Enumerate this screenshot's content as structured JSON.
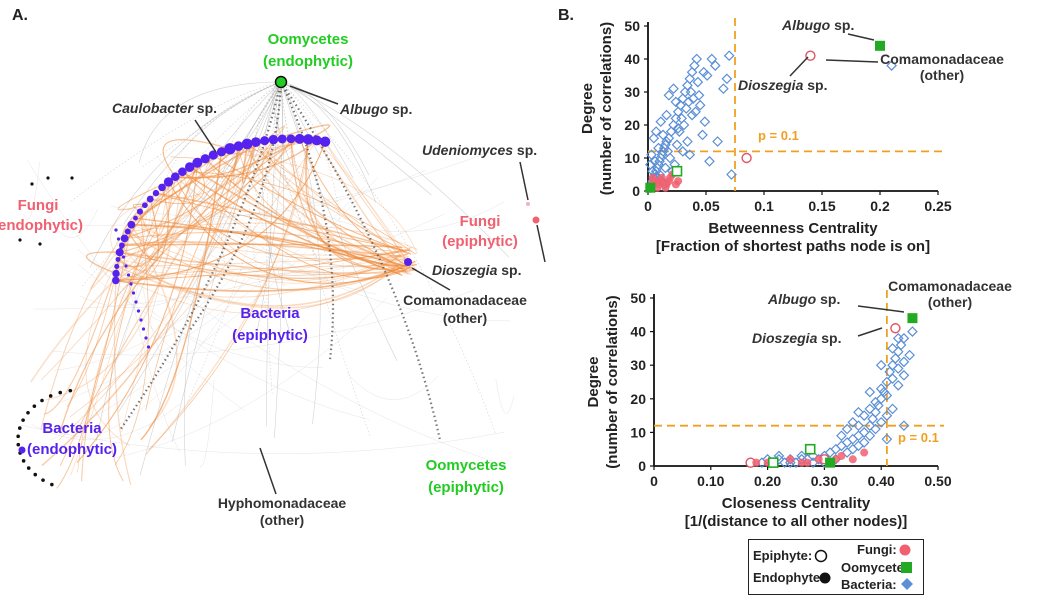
{
  "panel_a": {
    "panel_label": "A.",
    "groups": {
      "oomycetes_endo": [
        "Oomycetes",
        "(endophytic)"
      ],
      "fungi_endo": [
        "Fungi",
        "(endophytic)"
      ],
      "fungi_epi": [
        "Fungi",
        "(epiphytic)"
      ],
      "bacteria_epi": [
        "Bacteria",
        "(epiphytic)"
      ],
      "bacteria_endo": [
        "Bacteria",
        "(endophytic)"
      ],
      "oomycetes_epi": [
        "Oomycetes",
        "(epiphytic)"
      ]
    },
    "callouts": {
      "caulobacter": {
        "italic": "Caulobacter",
        "rest": " sp."
      },
      "albugo": {
        "italic": "Albugo",
        "rest": " sp."
      },
      "udeniomyces": {
        "italic": "Udeniomyces",
        "rest": " sp."
      },
      "dioszegia": {
        "italic": "Dioszegia",
        "rest": " sp."
      },
      "comamonadaceae": [
        "Comamonadaceae",
        "(other)"
      ],
      "hyphomonadaceae": [
        "Hyphomonadaceae",
        "(other)"
      ]
    },
    "colors": {
      "oomycetes": "#22cc22",
      "fungi": "#f06070",
      "bacteria": "#5522ee",
      "edges_bacteria": "#f08a3a",
      "edges_other": "#999999"
    }
  },
  "panel_b_label": "B.",
  "chart_data": [
    {
      "type": "scatter",
      "xlabel": "Betweenness Centrality",
      "xlabel2": "[Fraction of shortest paths node is on]",
      "ylabel": "Degree",
      "ylabel2": "(number of correlations)",
      "xlim": [
        0,
        0.25
      ],
      "ylim": [
        0,
        50
      ],
      "xticks": [
        "0",
        "0.05",
        "0.1",
        "0.15",
        "0.2",
        "0.25"
      ],
      "yticks": [
        "0",
        "10",
        "20",
        "30",
        "40",
        "50"
      ],
      "threshold_x": 0.075,
      "threshold_y": 12,
      "threshold_label": "p = 0.1",
      "annotations": {
        "albugo": {
          "italic": "Albugo",
          "rest": " sp."
        },
        "dioszegia": {
          "italic": "Dioszegia",
          "rest": " sp."
        },
        "comamonadaceae": [
          "Comamonadaceae",
          "(other)"
        ]
      },
      "series": [
        {
          "name": "Bacteria",
          "marker": "diamond",
          "points": [
            [
              0.002,
              1
            ],
            [
              0.003,
              2
            ],
            [
              0.004,
              3
            ],
            [
              0.005,
              4
            ],
            [
              0.006,
              5
            ],
            [
              0.007,
              6
            ],
            [
              0.008,
              7
            ],
            [
              0.009,
              8
            ],
            [
              0.01,
              9
            ],
            [
              0.011,
              10
            ],
            [
              0.012,
              11
            ],
            [
              0.013,
              12
            ],
            [
              0.014,
              13
            ],
            [
              0.015,
              14
            ],
            [
              0.016,
              15
            ],
            [
              0.018,
              16
            ],
            [
              0.02,
              18
            ],
            [
              0.022,
              20
            ],
            [
              0.024,
              22
            ],
            [
              0.026,
              24
            ],
            [
              0.028,
              26
            ],
            [
              0.03,
              28
            ],
            [
              0.032,
              30
            ],
            [
              0.034,
              32
            ],
            [
              0.036,
              34
            ],
            [
              0.038,
              36
            ],
            [
              0.04,
              38
            ],
            [
              0.042,
              40
            ],
            [
              0.055,
              40
            ],
            [
              0.07,
              41
            ],
            [
              0.002,
              8
            ],
            [
              0.003,
              11
            ],
            [
              0.004,
              6
            ],
            [
              0.006,
              9
            ],
            [
              0.008,
              4
            ],
            [
              0.01,
              5
            ],
            [
              0.012,
              3
            ],
            [
              0.014,
              2
            ],
            [
              0.015,
              7
            ],
            [
              0.017,
              12
            ],
            [
              0.019,
              10
            ],
            [
              0.021,
              6
            ],
            [
              0.023,
              8
            ],
            [
              0.025,
              14
            ],
            [
              0.027,
              18
            ],
            [
              0.029,
              22
            ],
            [
              0.031,
              20
            ],
            [
              0.033,
              25
            ],
            [
              0.035,
              27
            ],
            [
              0.037,
              30
            ],
            [
              0.039,
              28
            ],
            [
              0.041,
              24
            ],
            [
              0.043,
              33
            ],
            [
              0.045,
              26
            ],
            [
              0.047,
              17
            ],
            [
              0.049,
              21
            ],
            [
              0.051,
              35
            ],
            [
              0.053,
              9
            ],
            [
              0.06,
              15
            ],
            [
              0.065,
              31
            ],
            [
              0.068,
              34
            ],
            [
              0.072,
              5
            ],
            [
              0.005,
              16
            ],
            [
              0.007,
              18
            ],
            [
              0.009,
              13
            ],
            [
              0.011,
              21
            ],
            [
              0.013,
              17
            ],
            [
              0.016,
              23
            ],
            [
              0.018,
              29
            ],
            [
              0.022,
              31
            ],
            [
              0.024,
              27
            ],
            [
              0.026,
              19
            ],
            [
              0.03,
              12
            ],
            [
              0.034,
              15
            ],
            [
              0.036,
              11
            ],
            [
              0.038,
              23
            ],
            [
              0.044,
              29
            ],
            [
              0.048,
              36
            ],
            [
              0.058,
              38
            ],
            [
              0.21,
              38
            ]
          ]
        },
        {
          "name": "Fungi epiphyte",
          "marker": "circle-open",
          "color": "#e05565",
          "points": [
            [
              0.14,
              41
            ],
            [
              0.085,
              10
            ]
          ]
        },
        {
          "name": "Fungi endophyte",
          "marker": "circle-filled",
          "color": "#f06070",
          "points": [
            [
              0.003,
              2
            ],
            [
              0.006,
              3
            ],
            [
              0.009,
              2
            ],
            [
              0.012,
              4
            ],
            [
              0.015,
              1
            ],
            [
              0.018,
              3
            ],
            [
              0.021,
              5
            ],
            [
              0.024,
              2
            ],
            [
              0.004,
              4
            ],
            [
              0.008,
              1
            ],
            [
              0.011,
              3
            ],
            [
              0.016,
              2
            ],
            [
              0.019,
              4
            ],
            [
              0.026,
              3
            ]
          ]
        },
        {
          "name": "Oomycete epiphyte",
          "marker": "square-open",
          "color": "#22aa22",
          "points": [
            [
              0.025,
              6
            ]
          ]
        },
        {
          "name": "Oomycete endophyte",
          "marker": "square-filled",
          "color": "#22aa22",
          "points": [
            [
              0.2,
              44
            ],
            [
              0.002,
              1
            ]
          ]
        }
      ]
    },
    {
      "type": "scatter",
      "xlabel": "Closeness Centrality",
      "xlabel2": "[1/(distance to all other nodes)]",
      "ylabel": "Degree",
      "ylabel2": "(number of correlations)",
      "xlim": [
        0,
        0.5
      ],
      "ylim": [
        0,
        50
      ],
      "xticks": [
        "0",
        "0.10",
        "0.20",
        "0.30",
        "0.40",
        "0.50"
      ],
      "yticks": [
        "0",
        "10",
        "20",
        "30",
        "40",
        "50"
      ],
      "threshold_x": 0.41,
      "threshold_y": 12,
      "threshold_label": "p = 0.1",
      "annotations": {
        "albugo": {
          "italic": "Albugo",
          "rest": " sp."
        },
        "dioszegia": {
          "italic": "Dioszegia",
          "rest": " sp."
        },
        "comamonadaceae": [
          "Comamonadaceae",
          "(other)"
        ]
      },
      "series": [
        {
          "name": "Bacteria",
          "marker": "diamond",
          "points": [
            [
              0.17,
              1
            ],
            [
              0.19,
              1
            ],
            [
              0.2,
              2
            ],
            [
              0.21,
              1
            ],
            [
              0.22,
              2
            ],
            [
              0.23,
              1
            ],
            [
              0.24,
              2
            ],
            [
              0.25,
              1
            ],
            [
              0.26,
              3
            ],
            [
              0.27,
              2
            ],
            [
              0.28,
              3
            ],
            [
              0.29,
              2
            ],
            [
              0.3,
              3
            ],
            [
              0.31,
              4
            ],
            [
              0.32,
              5
            ],
            [
              0.33,
              6
            ],
            [
              0.34,
              7
            ],
            [
              0.35,
              8
            ],
            [
              0.36,
              9
            ],
            [
              0.37,
              10
            ],
            [
              0.38,
              12
            ],
            [
              0.385,
              14
            ],
            [
              0.39,
              16
            ],
            [
              0.395,
              18
            ],
            [
              0.4,
              20
            ],
            [
              0.405,
              22
            ],
            [
              0.41,
              25
            ],
            [
              0.415,
              28
            ],
            [
              0.42,
              30
            ],
            [
              0.425,
              32
            ],
            [
              0.43,
              34
            ],
            [
              0.435,
              36
            ],
            [
              0.44,
              38
            ],
            [
              0.455,
              40
            ],
            [
              0.33,
              9
            ],
            [
              0.34,
              11
            ],
            [
              0.35,
              13
            ],
            [
              0.36,
              12
            ],
            [
              0.37,
              15
            ],
            [
              0.38,
              17
            ],
            [
              0.39,
              19
            ],
            [
              0.4,
              23
            ],
            [
              0.41,
              21
            ],
            [
              0.42,
              26
            ],
            [
              0.43,
              29
            ],
            [
              0.44,
              31
            ],
            [
              0.36,
              6
            ],
            [
              0.37,
              7
            ],
            [
              0.38,
              9
            ],
            [
              0.39,
              11
            ],
            [
              0.4,
              13
            ],
            [
              0.41,
              15
            ],
            [
              0.42,
              17
            ],
            [
              0.43,
              24
            ],
            [
              0.44,
              27
            ],
            [
              0.45,
              33
            ],
            [
              0.35,
              5
            ],
            [
              0.32,
              2
            ],
            [
              0.3,
              1
            ],
            [
              0.28,
              1
            ],
            [
              0.26,
              2
            ],
            [
              0.24,
              1
            ],
            [
              0.22,
              3
            ],
            [
              0.4,
              30
            ],
            [
              0.38,
              22
            ],
            [
              0.42,
              35
            ],
            [
              0.43,
              38
            ],
            [
              0.44,
              12
            ],
            [
              0.41,
              8
            ],
            [
              0.36,
              16
            ],
            [
              0.34,
              4
            ]
          ]
        },
        {
          "name": "Fungi epiphyte",
          "marker": "circle-open",
          "color": "#e05565",
          "points": [
            [
              0.425,
              41
            ],
            [
              0.17,
              1
            ],
            [
              0.3,
              2
            ]
          ]
        },
        {
          "name": "Fungi endophyte",
          "marker": "circle-filled",
          "color": "#f06070",
          "points": [
            [
              0.18,
              1
            ],
            [
              0.21,
              1
            ],
            [
              0.24,
              2
            ],
            [
              0.27,
              1
            ],
            [
              0.29,
              2
            ],
            [
              0.31,
              1
            ],
            [
              0.33,
              3
            ],
            [
              0.35,
              2
            ],
            [
              0.37,
              4
            ],
            [
              0.2,
              1
            ],
            [
              0.26,
              1
            ],
            [
              0.32,
              2
            ]
          ]
        },
        {
          "name": "Oomycete epiphyte",
          "marker": "square-open",
          "color": "#22aa22",
          "points": [
            [
              0.275,
              5
            ],
            [
              0.21,
              1
            ]
          ]
        },
        {
          "name": "Oomycete endophyte",
          "marker": "square-filled",
          "color": "#22aa22",
          "points": [
            [
              0.455,
              44
            ],
            [
              0.31,
              1
            ]
          ]
        }
      ]
    }
  ],
  "legend": {
    "epiphyte": "Epiphyte:",
    "endophyte": "Endophyte:",
    "fungi": "Fungi:",
    "oomycete": "Oomycete:",
    "bacteria": "Bacteria:"
  }
}
